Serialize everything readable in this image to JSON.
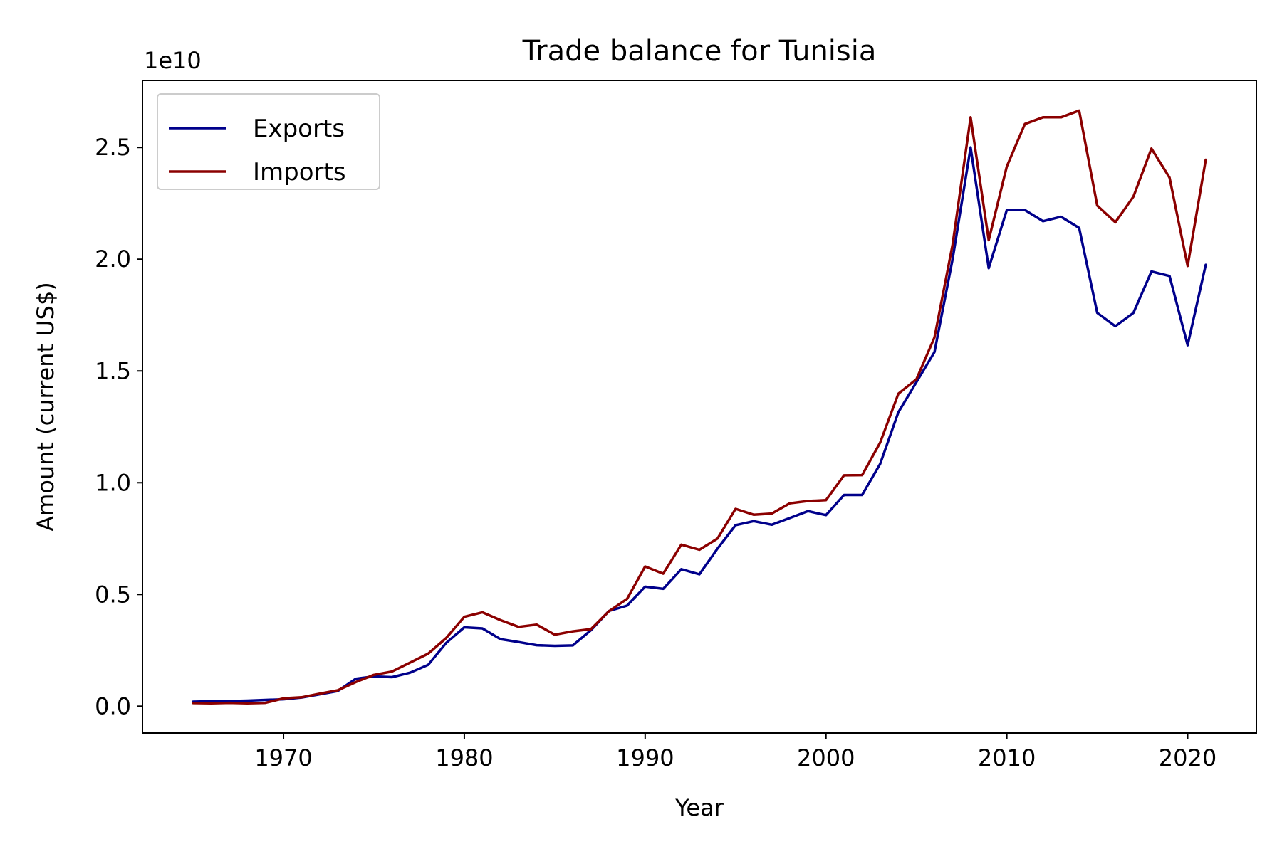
{
  "chart_data": {
    "type": "line",
    "title": "Trade balance for Tunisia",
    "xlabel": "Year",
    "ylabel": "Amount (current US$)",
    "y_offset_label": "1e10",
    "xlim": [
      1962.2,
      2023.8
    ],
    "ylim": [
      -1200000000.0,
      28000000000.0
    ],
    "x_ticks": [
      1970,
      1980,
      1990,
      2000,
      2010,
      2020
    ],
    "x_tick_labels": [
      "1970",
      "1980",
      "1990",
      "2000",
      "2010",
      "2020"
    ],
    "y_ticks": [
      0,
      5000000000.0,
      10000000000.0,
      15000000000.0,
      20000000000.0,
      25000000000.0
    ],
    "y_tick_labels": [
      "0.0",
      "0.5",
      "1.0",
      "1.5",
      "2.0",
      "2.5"
    ],
    "legend_position": "top-left",
    "grid": false,
    "x": [
      1965,
      1966,
      1967,
      1968,
      1969,
      1970,
      1971,
      1972,
      1973,
      1974,
      1975,
      1976,
      1977,
      1978,
      1979,
      1980,
      1981,
      1982,
      1983,
      1984,
      1985,
      1986,
      1987,
      1988,
      1989,
      1990,
      1991,
      1992,
      1993,
      1994,
      1995,
      1996,
      1997,
      1998,
      1999,
      2000,
      2001,
      2002,
      2003,
      2004,
      2005,
      2006,
      2007,
      2008,
      2009,
      2010,
      2011,
      2012,
      2013,
      2014,
      2015,
      2016,
      2017,
      2018,
      2019,
      2020,
      2021
    ],
    "series": [
      {
        "name": "Exports",
        "color": "#00008b",
        "values": [
          200000000.0,
          220000000.0,
          230000000.0,
          250000000.0,
          280000000.0,
          310000000.0,
          390000000.0,
          530000000.0,
          680000000.0,
          1230000000.0,
          1330000000.0,
          1300000000.0,
          1500000000.0,
          1850000000.0,
          2830000000.0,
          3530000000.0,
          3480000000.0,
          3000000000.0,
          2870000000.0,
          2730000000.0,
          2700000000.0,
          2720000000.0,
          3400000000.0,
          4260000000.0,
          4500000000.0,
          5350000000.0,
          5250000000.0,
          6130000000.0,
          5900000000.0,
          7050000000.0,
          8100000000.0,
          8280000000.0,
          8120000000.0,
          8420000000.0,
          8730000000.0,
          8550000000.0,
          9450000000.0,
          9450000000.0,
          10850000000.0,
          13150000000.0,
          14500000000.0,
          15850000000.0,
          20000000000.0,
          25000000000.0,
          19600000000.0,
          22200000000.0,
          22200000000.0,
          21700000000.0,
          21900000000.0,
          21400000000.0,
          17600000000.0,
          17000000000.0,
          17600000000.0,
          19450000000.0,
          19250000000.0,
          16150000000.0,
          19750000000.0
        ]
      },
      {
        "name": "Imports",
        "color": "#8b0000",
        "values": [
          140000000.0,
          130000000.0,
          150000000.0,
          130000000.0,
          150000000.0,
          350000000.0,
          400000000.0,
          560000000.0,
          710000000.0,
          1080000000.0,
          1400000000.0,
          1550000000.0,
          1950000000.0,
          2350000000.0,
          3050000000.0,
          4000000000.0,
          4200000000.0,
          3850000000.0,
          3550000000.0,
          3650000000.0,
          3200000000.0,
          3350000000.0,
          3450000000.0,
          4250000000.0,
          4800000000.0,
          6250000000.0,
          5930000000.0,
          7230000000.0,
          7000000000.0,
          7500000000.0,
          8830000000.0,
          8570000000.0,
          8620000000.0,
          9080000000.0,
          9180000000.0,
          9220000000.0,
          10330000000.0,
          10340000000.0,
          11800000000.0,
          13980000000.0,
          14630000000.0,
          16500000000.0,
          20650000000.0,
          26350000000.0,
          20850000000.0,
          24150000000.0,
          26050000000.0,
          26350000000.0,
          26350000000.0,
          26650000000.0,
          22400000000.0,
          21650000000.0,
          22800000000.0,
          24950000000.0,
          23650000000.0,
          19700000000.0,
          24450000000.0
        ]
      }
    ]
  }
}
